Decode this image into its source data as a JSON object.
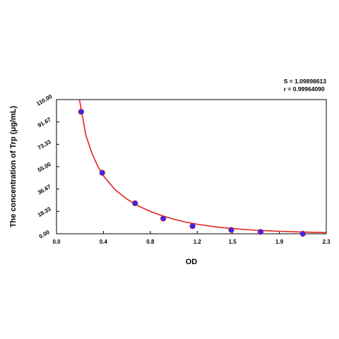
{
  "stats": {
    "s_label": "S = 1.09898613",
    "r_label": "r = 0.99964090"
  },
  "chart_data": {
    "type": "scatter",
    "xlabel": "OD",
    "ylabel": "The concentration of Trp (μg/mL)",
    "xlim": [
      0.0,
      2.3
    ],
    "ylim": [
      0.0,
      110.0
    ],
    "x_ticks": [
      0.0,
      0.4,
      0.8,
      1.2,
      1.5,
      1.9,
      2.3
    ],
    "x_tick_labels": [
      "0.0",
      "0.4",
      "0.8",
      "1.2",
      "1.5",
      "1.9",
      "2.3"
    ],
    "y_ticks": [
      0.0,
      18.33,
      36.67,
      55.0,
      73.33,
      91.67,
      110.0
    ],
    "y_tick_labels": [
      "0.00",
      "18.33",
      "36.67",
      "55.00",
      "73.33",
      "91.67",
      "110.00"
    ],
    "grid": false,
    "series": [
      {
        "type": "scatter",
        "x": [
          0.21,
          0.39,
          0.67,
          0.91,
          1.16,
          1.49,
          1.74,
          2.1
        ],
        "y": [
          100.0,
          50.0,
          25.0,
          12.5,
          6.25,
          3.12,
          1.56,
          0.0
        ]
      },
      {
        "type": "line",
        "x": [
          0.19,
          0.25,
          0.3,
          0.35,
          0.4,
          0.5,
          0.6,
          0.7,
          0.8,
          0.9,
          1.0,
          1.1,
          1.2,
          1.35,
          1.5,
          1.7,
          1.9,
          2.1,
          2.3
        ],
        "y": [
          113.0,
          81.0,
          66.5,
          55.7,
          47.5,
          36.0,
          28.4,
          22.7,
          18.3,
          14.8,
          11.9,
          9.6,
          7.8,
          5.7,
          4.2,
          2.9,
          2.0,
          1.4,
          1.0
        ]
      }
    ],
    "colors": {
      "points": "#2b2bff",
      "curve": "#e0241c",
      "axis": "#000000"
    }
  }
}
